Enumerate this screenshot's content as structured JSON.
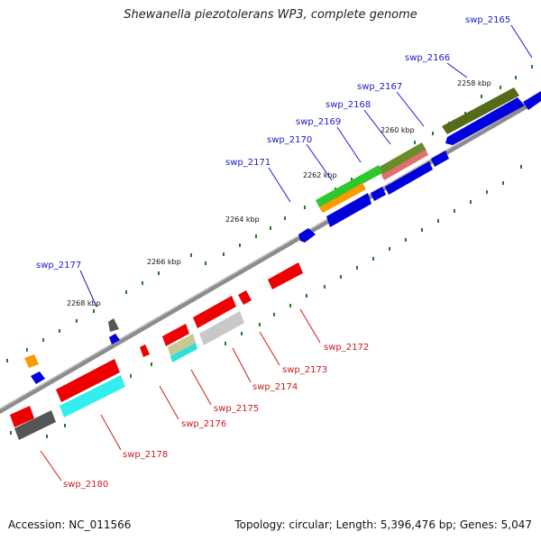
{
  "title": "Shewanella piezotolerans WP3, complete genome",
  "footer": {
    "accession": "Accession: NC_011566",
    "summary": "Topology: circular; Length: 5,396,476 bp; Genes: 5,047"
  },
  "colors": {
    "backbone": "#8c8c8c",
    "tick": "#1e7d1e",
    "label_forward": "#1a1acc",
    "label_reverse": "#cc1a1a"
  },
  "scale_labels": [
    "2258 kbp",
    "2260 kbp",
    "2262 kbp",
    "2264 kbp",
    "2266 kbp",
    "2268 kbp"
  ],
  "forward_gene_labels": [
    "swp_2165",
    "swp_2166",
    "swp_2167",
    "swp_2168",
    "swp_2169",
    "swp_2170",
    "swp_2171",
    "swp_2177"
  ],
  "reverse_gene_labels": [
    "swp_2172",
    "swp_2173",
    "swp_2174",
    "swp_2175",
    "swp_2176",
    "swp_2178",
    "swp_2180"
  ]
}
